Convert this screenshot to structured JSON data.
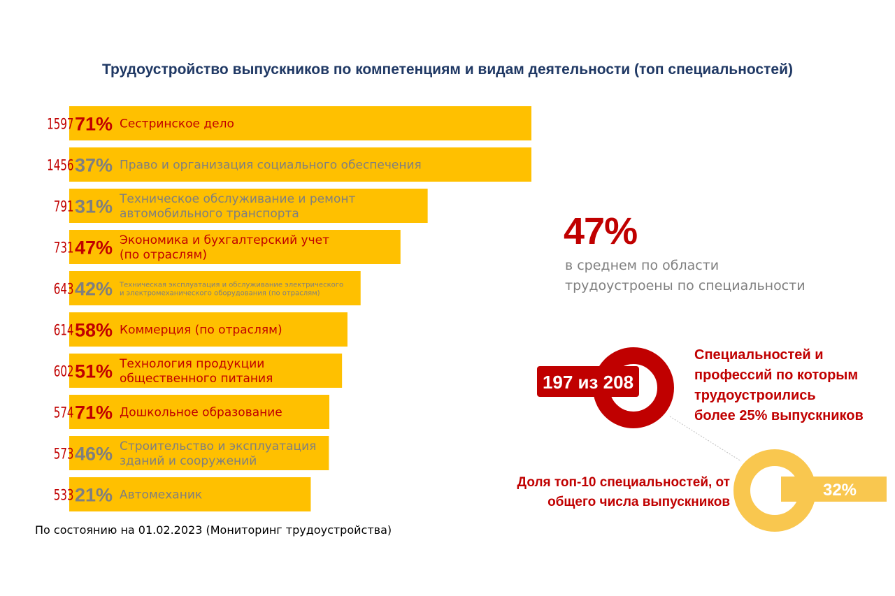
{
  "title": "Трудоустройство выпускников по компетенциям и видам деятельности (топ специальностей)",
  "chart_data": {
    "type": "bar",
    "orientation": "horizontal",
    "title": "Трудоустройство выпускников по компетенциям и видам деятельности (топ специальностей)",
    "xlim": [
      0,
      1597
    ],
    "categories": [
      "Сестринское дело",
      "Право и организация социального обеспечения",
      "Техническое обслуживание и ремонт автомобильного транспорта",
      "Экономика и бухгалтерский учет (по отраслям)",
      "Техническая эксплуатация и обслуживание электрического и электромеханического оборудования (по отраслям)",
      "Коммерция (по отраслям)",
      "Технология продукции общественного питания",
      "Дошкольное образование",
      "Строительство и эксплуатация зданий и сооружений",
      "Автомеханик"
    ],
    "series": [
      {
        "name": "",
        "values": [
          1597,
          1456,
          791,
          731,
          643,
          614,
          602,
          574,
          573,
          533
        ]
      }
    ],
    "rows": [
      {
        "count": "1597",
        "pct": "71%",
        "label_lines": [
          "Сестринское  дело"
        ],
        "color": "#c00000",
        "small": false
      },
      {
        "count": "1456",
        "pct": "37%",
        "label_lines": [
          "Право и организация  социального  обеспечения"
        ],
        "color": "#7f7f7f",
        "small": false
      },
      {
        "count": "791",
        "pct": "31%",
        "label_lines": [
          "Техническое  обслуживание  и ремонт",
          "автомобильного  транспорта"
        ],
        "color": "#7f7f7f",
        "small": false
      },
      {
        "count": "731",
        "pct": "47%",
        "label_lines": [
          "Экономика и бухгалтерский  учет",
          "(по отраслям)"
        ],
        "color": "#c00000",
        "small": false
      },
      {
        "count": "643",
        "pct": "42%",
        "label_lines": [
          "Техническая эксплуатация и обслуживание электрического",
          "и электромеханического оборудования (по отраслям)"
        ],
        "color": "#7f7f7f",
        "small": true
      },
      {
        "count": "614",
        "pct": "58%",
        "label_lines": [
          "Коммерция  (по отраслям)"
        ],
        "color": "#c00000",
        "small": false
      },
      {
        "count": "602",
        "pct": "51%",
        "label_lines": [
          "Технология  продукции",
          "общественного  питания"
        ],
        "color": "#c00000",
        "small": false
      },
      {
        "count": "574",
        "pct": "71%",
        "label_lines": [
          "Дошкольное образование"
        ],
        "color": "#c00000",
        "small": false
      },
      {
        "count": "573",
        "pct": "46%",
        "label_lines": [
          "Строительство  и эксплуатация",
          "зданий и сооружений"
        ],
        "color": "#7f7f7f",
        "small": false
      },
      {
        "count": "533",
        "pct": "21%",
        "label_lines": [
          "Автомеханик"
        ],
        "color": "#7f7f7f",
        "small": false
      }
    ],
    "bar_color": "#ffc000"
  },
  "summary": {
    "avg_pct": "47%",
    "avg_text_line1": "в среднем по области",
    "avg_text_line2": "трудоустроены по специальности"
  },
  "specialties": {
    "ratio": "197 из 208",
    "text_line1": "Специальностей и",
    "text_line2": "профессий по которым",
    "text_line3": "трудоустроились",
    "text_line4": "более 25% выпускников",
    "color": "#c00000"
  },
  "top10_share": {
    "text_line1": "Доля топ-10 специальностей, от",
    "text_line2": "общего числа выпускников",
    "pct": "32%",
    "value": 32,
    "color": "#f9c74f"
  },
  "footnote": "По состоянию на 01.02.2023  (Мониторинг трудоустройства)"
}
